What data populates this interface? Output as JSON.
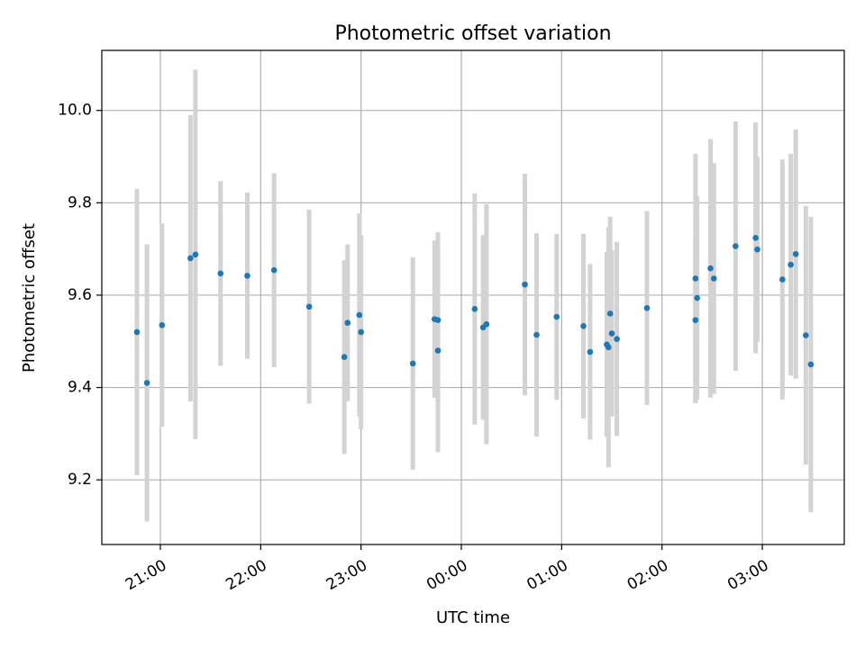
{
  "chart_data": {
    "type": "scatter",
    "title": "Photometric offset variation",
    "xlabel": "UTC time",
    "ylabel": "Photometric offset",
    "x_tick_labels": [
      "21:00",
      "22:00",
      "23:00",
      "00:00",
      "01:00",
      "02:00",
      "03:00"
    ],
    "y_ticks": [
      9.2,
      9.4,
      9.6,
      9.8,
      10.0
    ],
    "y_tick_labels": [
      "9.2",
      "9.4",
      "9.6",
      "9.8",
      "10.0"
    ],
    "xlim": [
      "20:25",
      "03:49"
    ],
    "ylim": [
      9.06,
      10.13
    ],
    "grid": true,
    "legend": "none",
    "colors": {
      "point": "#1f77b4",
      "errorbar": "#d3d3d3",
      "grid": "#b0b0b0",
      "axes": "#000000"
    },
    "series": [
      {
        "points": [
          {
            "t": "20:46",
            "y": 9.52,
            "err": 0.31
          },
          {
            "t": "20:52",
            "y": 9.41,
            "err": 0.3
          },
          {
            "t": "21:01",
            "y": 9.535,
            "err": 0.22
          },
          {
            "t": "21:18",
            "y": 9.68,
            "err": 0.31
          },
          {
            "t": "21:21",
            "y": 9.688,
            "err": 0.4
          },
          {
            "t": "21:36",
            "y": 9.647,
            "err": 0.2
          },
          {
            "t": "21:52",
            "y": 9.642,
            "err": 0.18
          },
          {
            "t": "22:08",
            "y": 9.654,
            "err": 0.21
          },
          {
            "t": "22:29",
            "y": 9.575,
            "err": 0.21
          },
          {
            "t": "22:50",
            "y": 9.466,
            "err": 0.21
          },
          {
            "t": "22:52",
            "y": 9.54,
            "err": 0.17
          },
          {
            "t": "22:59",
            "y": 9.557,
            "err": 0.22
          },
          {
            "t": "23:00",
            "y": 9.52,
            "err": 0.21
          },
          {
            "t": "23:31",
            "y": 9.452,
            "err": 0.23
          },
          {
            "t": "23:44",
            "y": 9.548,
            "err": 0.17
          },
          {
            "t": "23:46",
            "y": 9.546,
            "err": 0.19
          },
          {
            "t": "23:46",
            "y": 9.48,
            "err": 0.22
          },
          {
            "t": "00:08",
            "y": 9.57,
            "err": 0.25
          },
          {
            "t": "00:13",
            "y": 9.53,
            "err": 0.2
          },
          {
            "t": "00:15",
            "y": 9.537,
            "err": 0.26
          },
          {
            "t": "00:38",
            "y": 9.623,
            "err": 0.24
          },
          {
            "t": "00:45",
            "y": 9.514,
            "err": 0.22
          },
          {
            "t": "00:57",
            "y": 9.553,
            "err": 0.18
          },
          {
            "t": "01:13",
            "y": 9.533,
            "err": 0.2
          },
          {
            "t": "01:17",
            "y": 9.477,
            "err": 0.19
          },
          {
            "t": "01:27",
            "y": 9.493,
            "err": 0.2
          },
          {
            "t": "01:28",
            "y": 9.487,
            "err": 0.26
          },
          {
            "t": "01:29",
            "y": 9.56,
            "err": 0.21
          },
          {
            "t": "01:30",
            "y": 9.517,
            "err": 0.18
          },
          {
            "t": "01:33",
            "y": 9.505,
            "err": 0.21
          },
          {
            "t": "01:51",
            "y": 9.572,
            "err": 0.21
          },
          {
            "t": "02:20",
            "y": 9.636,
            "err": 0.27
          },
          {
            "t": "02:20",
            "y": 9.546,
            "err": 0.18
          },
          {
            "t": "02:21",
            "y": 9.594,
            "err": 0.22
          },
          {
            "t": "02:29",
            "y": 9.658,
            "err": 0.28
          },
          {
            "t": "02:31",
            "y": 9.636,
            "err": 0.25
          },
          {
            "t": "02:44",
            "y": 9.706,
            "err": 0.27
          },
          {
            "t": "02:56",
            "y": 9.724,
            "err": 0.25
          },
          {
            "t": "02:57",
            "y": 9.699,
            "err": 0.2
          },
          {
            "t": "03:12",
            "y": 9.634,
            "err": 0.26
          },
          {
            "t": "03:17",
            "y": 9.666,
            "err": 0.24
          },
          {
            "t": "03:20",
            "y": 9.689,
            "err": 0.27
          },
          {
            "t": "03:26",
            "y": 9.513,
            "err": 0.28
          },
          {
            "t": "03:29",
            "y": 9.45,
            "err": 0.32
          }
        ]
      }
    ]
  }
}
